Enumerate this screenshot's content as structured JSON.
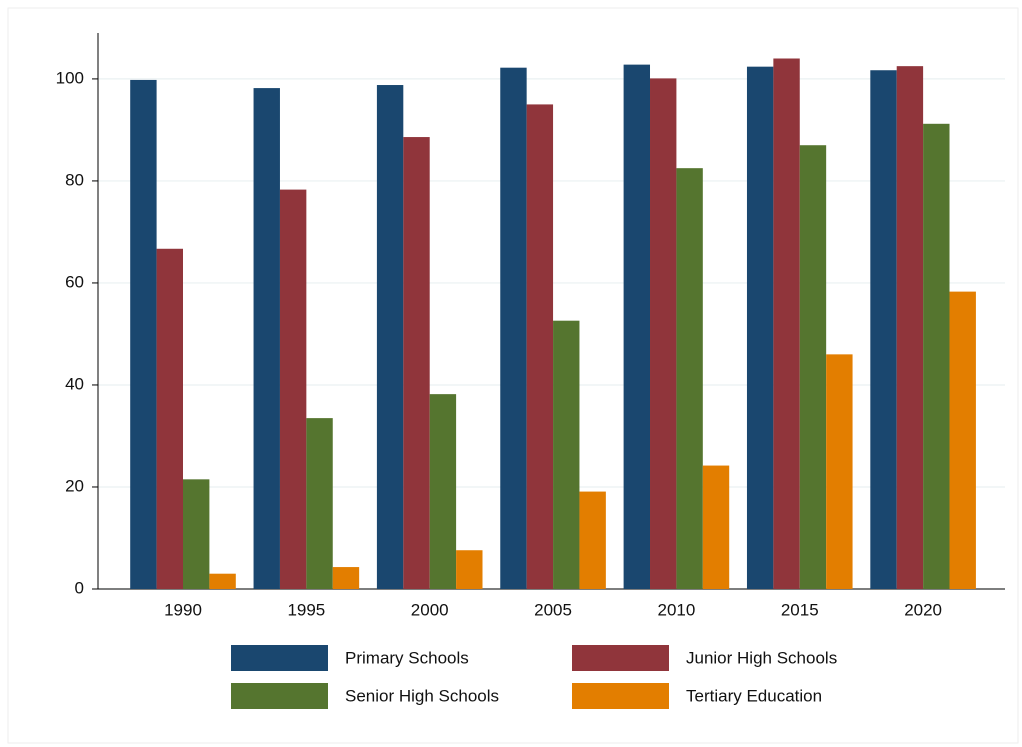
{
  "chart_data": {
    "type": "bar",
    "categories": [
      "1990",
      "1995",
      "2000",
      "2005",
      "2010",
      "2015",
      "2020"
    ],
    "series": [
      {
        "name": "Primary Schools",
        "color": "#1a476f",
        "values": [
          99.8,
          98.2,
          98.8,
          102.2,
          102.8,
          102.4,
          101.7
        ]
      },
      {
        "name": "Junior High Schools",
        "color": "#90353b",
        "values": [
          66.7,
          78.3,
          88.6,
          95.0,
          100.1,
          104.0,
          102.5
        ]
      },
      {
        "name": "Senior High Schools",
        "color": "#55752f",
        "values": [
          21.5,
          33.5,
          38.2,
          52.6,
          82.5,
          87.0,
          91.2
        ]
      },
      {
        "name": "Tertiary Education",
        "color": "#e37e00",
        "values": [
          3.0,
          4.3,
          7.6,
          19.1,
          24.2,
          46.0,
          58.3
        ]
      }
    ],
    "ylim": [
      0,
      109
    ],
    "yticks": [
      0,
      20,
      40,
      60,
      80,
      100
    ],
    "grid": true
  }
}
